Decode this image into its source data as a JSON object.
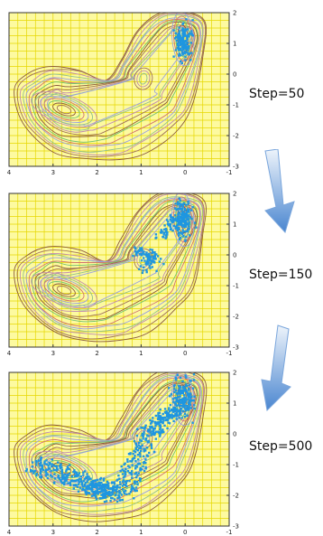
{
  "panels": [
    {
      "step_label": "Step=50",
      "x_ticks": [
        "4",
        "3",
        "2",
        "1",
        "0",
        "-1"
      ],
      "y_ticks": [
        "2",
        "1",
        "0",
        "-1",
        "-2",
        "-3"
      ],
      "samples": "single-cluster-upper-right"
    },
    {
      "step_label": "Step=150",
      "x_ticks": [
        "4",
        "3",
        "2",
        "1",
        "0",
        "-1"
      ],
      "y_ticks": [
        "2",
        "1",
        "0",
        "-1",
        "-2",
        "-3"
      ],
      "samples": "upper-right-plus-mid"
    },
    {
      "step_label": "Step=500",
      "x_ticks": [
        "4",
        "3",
        "2",
        "1",
        "0",
        "-1"
      ],
      "y_ticks": [
        "2",
        "1",
        "0",
        "-1",
        "-2",
        "-3"
      ],
      "samples": "full-path"
    }
  ],
  "colors": {
    "background": "#fdfaa0",
    "grid": "#e6d700",
    "samples": "#1e96e0",
    "contours": [
      "#8b5a3c",
      "#a0705a",
      "#c08ab0",
      "#8fbf8f",
      "#9aa0e0",
      "#d07070",
      "#70c070"
    ],
    "arrow": "#4a86d0"
  },
  "icons": [
    "down-arrow-icon",
    "down-arrow-icon"
  ]
}
